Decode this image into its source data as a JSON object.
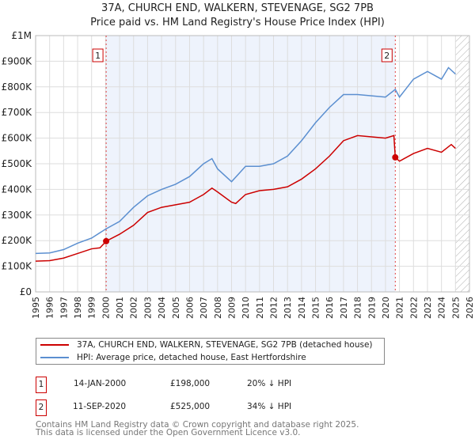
{
  "title": "37A, CHURCH END, WALKERN, STEVENAGE, SG2 7PB",
  "subtitle": "Price paid vs. HM Land Registry's House Price Index (HPI)",
  "chart_data": {
    "type": "line",
    "xlim": [
      1995,
      2026
    ],
    "ylim": [
      0,
      1000000
    ],
    "yticks": [
      0,
      100000,
      200000,
      300000,
      400000,
      500000,
      600000,
      700000,
      800000,
      900000,
      1000000
    ],
    "ytick_labels": [
      "£0",
      "£100K",
      "£200K",
      "£300K",
      "£400K",
      "£500K",
      "£600K",
      "£700K",
      "£800K",
      "£900K",
      "£1M"
    ],
    "xticks": [
      1995,
      1996,
      1997,
      1998,
      1999,
      2000,
      2001,
      2002,
      2003,
      2004,
      2005,
      2006,
      2007,
      2008,
      2009,
      2010,
      2011,
      2012,
      2013,
      2014,
      2015,
      2016,
      2017,
      2018,
      2019,
      2020,
      2021,
      2022,
      2023,
      2024,
      2025,
      2026
    ],
    "grid": true,
    "shaded_range": [
      2000.04,
      2020.7
    ],
    "hatched_from": 2025.0,
    "series": [
      {
        "name": "37A, CHURCH END, WALKERN, STEVENAGE, SG2 7PB (detached house)",
        "color": "#cc0000",
        "x": [
          1995,
          1996,
          1997,
          1998,
          1999,
          1999.6,
          2000.04,
          2001,
          2002,
          2003,
          2004,
          2005,
          2006,
          2007,
          2007.6,
          2008,
          2009,
          2009.3,
          2010,
          2011,
          2012,
          2013,
          2014,
          2015,
          2016,
          2017,
          2018,
          2019,
          2020,
          2020.6,
          2020.7,
          2021,
          2022,
          2023,
          2024,
          2024.7,
          2025
        ],
        "y": [
          120000,
          122000,
          132000,
          150000,
          168000,
          172000,
          198000,
          225000,
          260000,
          310000,
          330000,
          340000,
          350000,
          380000,
          405000,
          390000,
          350000,
          345000,
          380000,
          395000,
          400000,
          410000,
          440000,
          480000,
          530000,
          590000,
          610000,
          605000,
          600000,
          610000,
          525000,
          510000,
          540000,
          560000,
          545000,
          575000,
          560000
        ]
      },
      {
        "name": "HPI: Average price, detached house, East Hertfordshire",
        "color": "#5b8fd0",
        "x": [
          1995,
          1996,
          1997,
          1998,
          1999,
          2000,
          2001,
          2002,
          2003,
          2004,
          2005,
          2006,
          2007,
          2007.6,
          2008,
          2009,
          2009.5,
          2010,
          2011,
          2012,
          2013,
          2014,
          2015,
          2016,
          2017,
          2018,
          2019,
          2020,
          2020.7,
          2021,
          2022,
          2023,
          2024,
          2024.5,
          2025
        ],
        "y": [
          150000,
          152000,
          165000,
          190000,
          210000,
          245000,
          275000,
          330000,
          375000,
          400000,
          420000,
          450000,
          500000,
          520000,
          480000,
          430000,
          460000,
          490000,
          490000,
          500000,
          530000,
          590000,
          660000,
          720000,
          770000,
          770000,
          765000,
          760000,
          790000,
          760000,
          830000,
          860000,
          830000,
          875000,
          850000
        ]
      }
    ],
    "annotations": [
      {
        "label": "1",
        "x": 2000.04,
        "y": 198000
      },
      {
        "label": "2",
        "x": 2020.7,
        "y": 525000
      }
    ]
  },
  "legend": [
    "37A, CHURCH END, WALKERN, STEVENAGE, SG2 7PB (detached house)",
    "HPI: Average price, detached house, East Hertfordshire"
  ],
  "sales": [
    {
      "num": "1",
      "date": "14-JAN-2000",
      "price": "£198,000",
      "hpi": "20% ↓ HPI"
    },
    {
      "num": "2",
      "date": "11-SEP-2020",
      "price": "£525,000",
      "hpi": "34% ↓ HPI"
    }
  ],
  "footer": [
    "Contains HM Land Registry data © Crown copyright and database right 2025.",
    "This data is licensed under the Open Government Licence v3.0."
  ]
}
